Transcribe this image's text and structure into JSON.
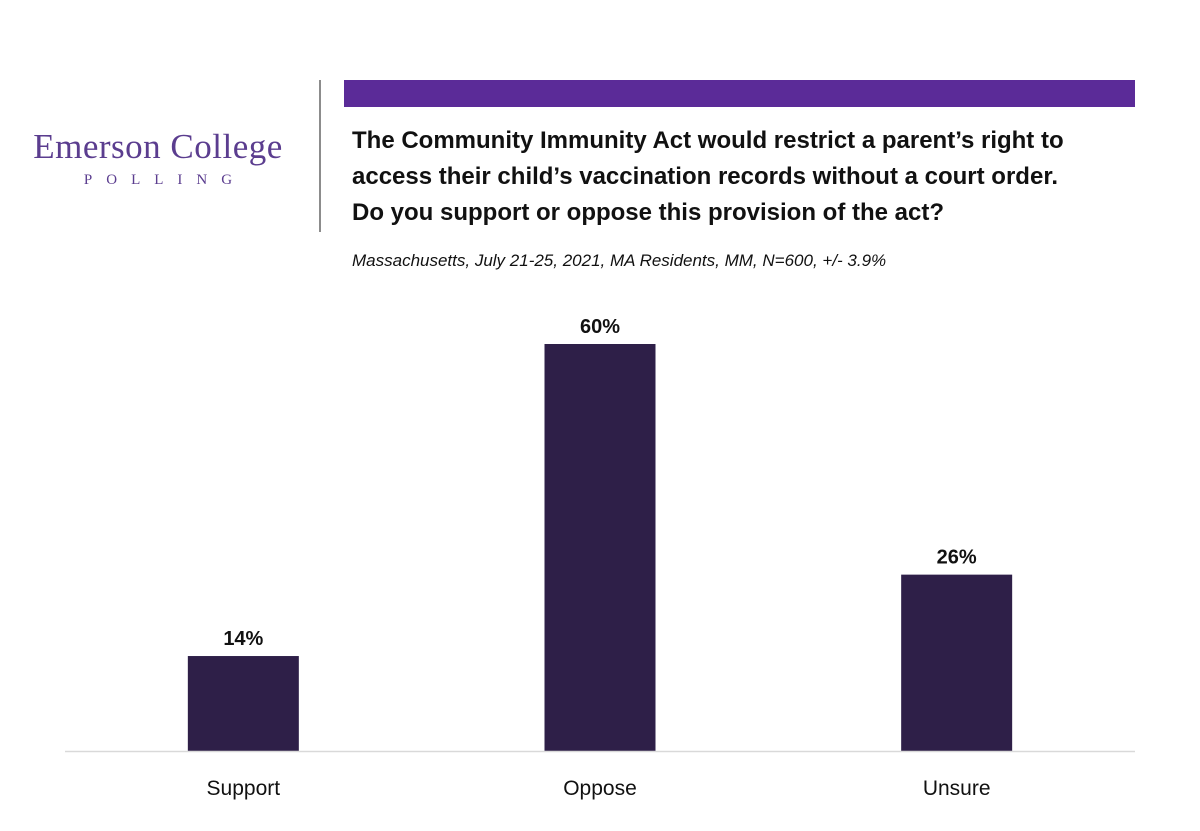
{
  "logo": {
    "name": "Emerson College",
    "sub": "POLLING"
  },
  "colors": {
    "brand": "#5b3d8f",
    "accent_bar": "#5b2b98",
    "bar": "#2e1f48",
    "baseline": "#d9d9d9"
  },
  "chart_data": {
    "type": "bar",
    "title_lines": [
      "The Community Immunity Act would restrict a parent’s right to",
      "access their child’s vaccination records without a court order.",
      "Do you support or oppose this provision of the act?"
    ],
    "subtitle": "Massachusetts, July 21-25, 2021, MA Residents, MM, N=600, +/- 3.9%",
    "categories": [
      "Support",
      "Oppose",
      "Unsure"
    ],
    "values": [
      14,
      60,
      26
    ],
    "data_labels": [
      "14%",
      "60%",
      "26%"
    ],
    "xlabel": "",
    "ylabel": "",
    "ylim": [
      0,
      60
    ],
    "grid": false,
    "legend": "none"
  }
}
